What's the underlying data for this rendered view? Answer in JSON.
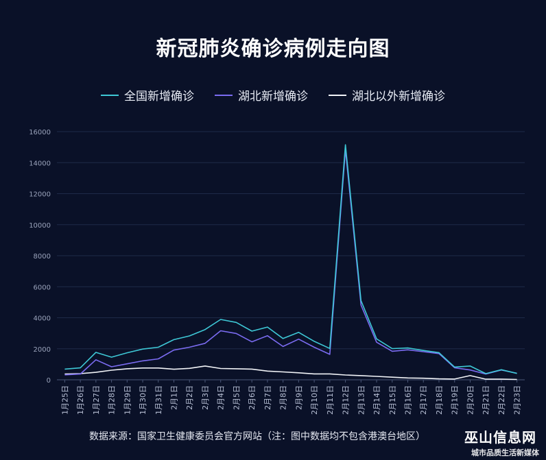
{
  "chart_data": {
    "type": "line",
    "title": "新冠肺炎确诊病例走向图",
    "xlabel": "",
    "ylabel": "",
    "ylim": [
      0,
      16000
    ],
    "yticks": [
      0,
      2000,
      4000,
      6000,
      8000,
      10000,
      12000,
      14000,
      16000
    ],
    "grid": true,
    "legend_position": "top-center",
    "categories": [
      "1月25日",
      "1月26日",
      "1月27日",
      "1月28日",
      "1月29日",
      "1月30日",
      "1月31日",
      "2月1日",
      "2月2日",
      "2月3日",
      "2月4日",
      "2月5日",
      "2月6日",
      "2月7日",
      "2月8日",
      "2月9日",
      "2月10日",
      "2月11日",
      "2月12日",
      "2月13日",
      "2月14日",
      "2月15日",
      "2月16日",
      "2月17日",
      "2月18日",
      "2月19日",
      "2月20日",
      "2月21日",
      "2月22日",
      "2月23日"
    ],
    "series": [
      {
        "name": "全国新增确诊",
        "color": "#3ec8d6",
        "values": [
          690,
          770,
          1770,
          1460,
          1740,
          1980,
          2100,
          2590,
          2830,
          3240,
          3890,
          3700,
          3140,
          3400,
          2660,
          3060,
          2480,
          2020,
          15150,
          5100,
          2640,
          2010,
          2050,
          1890,
          1750,
          820,
          890,
          400,
          650,
          410
        ]
      },
      {
        "name": "湖北新增确诊",
        "color": "#7b6cf2",
        "values": [
          320,
          370,
          1290,
          840,
          1030,
          1220,
          1350,
          1920,
          2100,
          2350,
          3160,
          2990,
          2450,
          2840,
          2150,
          2620,
          2100,
          1640,
          14840,
          4820,
          2420,
          1840,
          1930,
          1810,
          1690,
          780,
          630,
          370,
          630,
          420
        ]
      },
      {
        "name": "湖北以外新增确诊",
        "color": "#f2f4f8",
        "values": [
          370,
          400,
          480,
          620,
          710,
          760,
          760,
          680,
          740,
          890,
          730,
          710,
          690,
          560,
          510,
          450,
          380,
          380,
          310,
          270,
          220,
          170,
          120,
          100,
          60,
          50,
          270,
          40,
          40,
          20
        ]
      }
    ]
  },
  "footer": {
    "source": "数据来源：国家卫生健康委员会官方网站（注：图中数据均不包含港澳台地区）",
    "watermark": "巫山信息网",
    "watermark_sub": "城市品质生活新媒体"
  }
}
